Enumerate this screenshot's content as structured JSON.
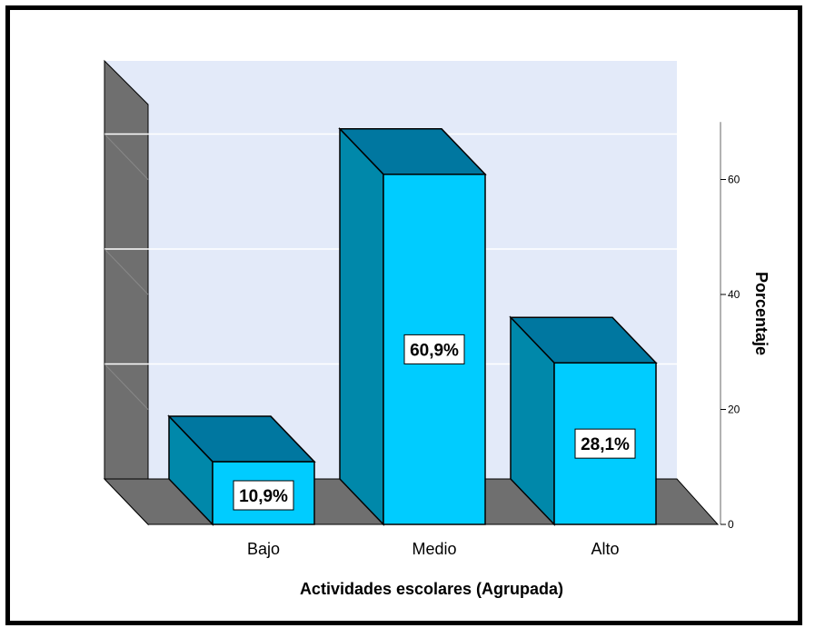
{
  "chart_data": {
    "type": "bar",
    "categories": [
      "Bajo",
      "Medio",
      "Alto"
    ],
    "values": [
      10.9,
      60.9,
      28.1
    ],
    "data_labels": [
      "10,9%",
      "60,9%",
      "28,1%"
    ],
    "xlabel": "Actividades escolares (Agrupada)",
    "ylabel": "Porcentaje",
    "ylim": [
      0,
      70
    ],
    "yticks": [
      0,
      20,
      40,
      60
    ],
    "ytick_labels": [
      "0",
      "20",
      "40",
      "60"
    ],
    "grid": true,
    "legend": "none",
    "style": "3d",
    "colors": {
      "bar_front": "#00ccff",
      "bar_side": "#0088aa",
      "bar_top": "#0077a0",
      "wall_back": "#e3eaf9",
      "wall_side": "#6f6f6f",
      "floor": "#6f6f6f",
      "gridline": "#ffffff"
    }
  }
}
